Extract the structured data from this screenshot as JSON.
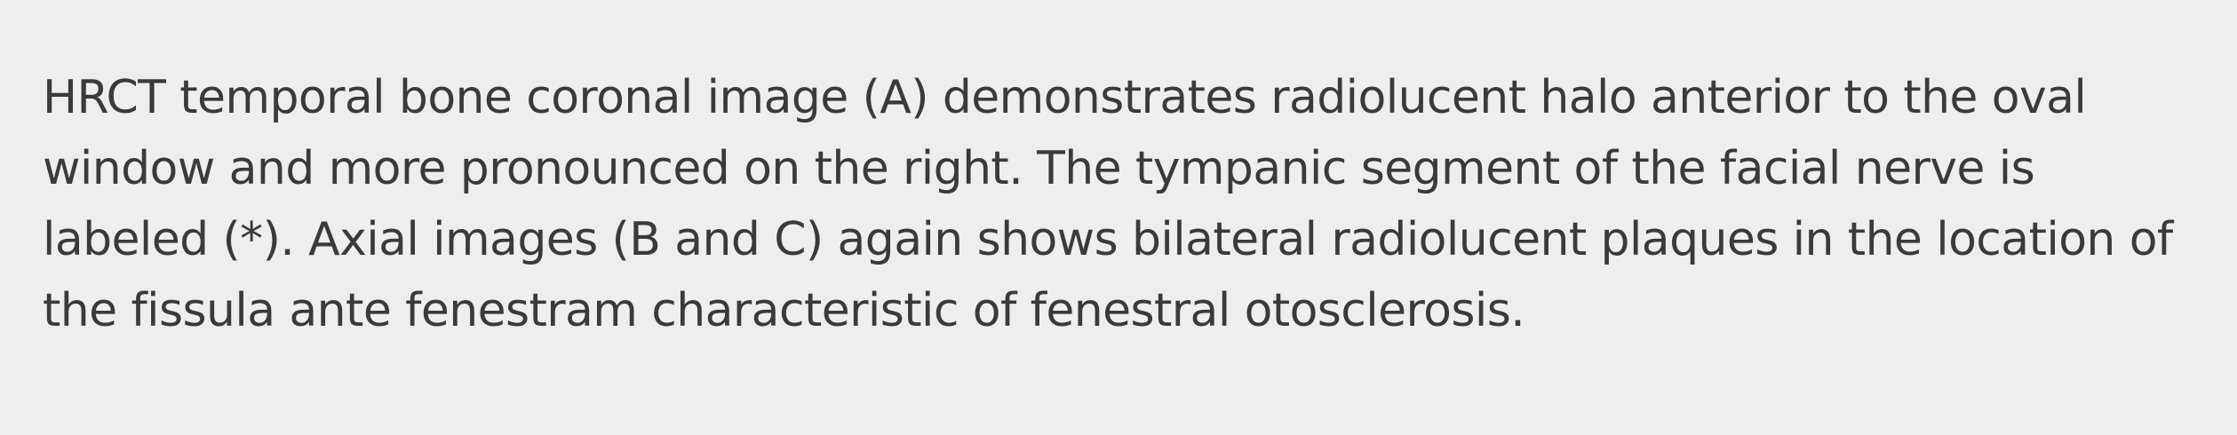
{
  "caption": {
    "text": "HRCT temporal bone coronal image (A) demonstrates radiolucent halo anterior to the oval window and more pronounced on the right. The tympanic segment of the facial nerve is labeled (*). Axial images (B and C) again shows bilateral radiolucent plaques in the location of the fissula ante fenestram characteristic of fenestral otosclerosis."
  }
}
